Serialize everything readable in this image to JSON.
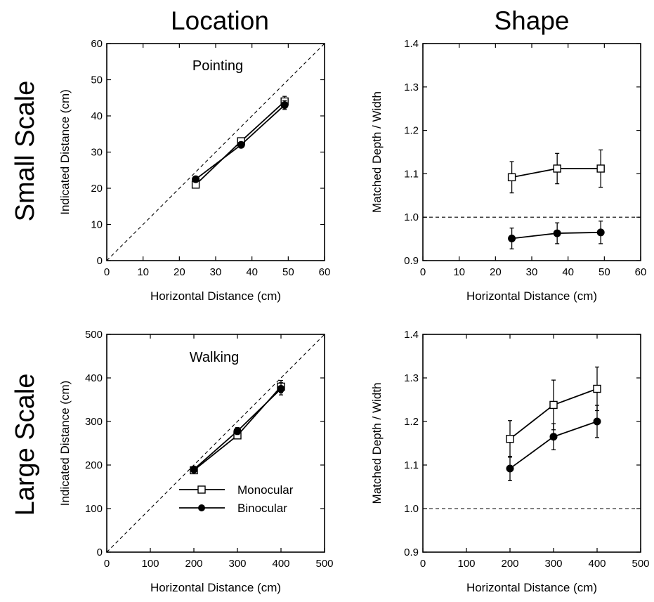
{
  "figure": {
    "column_titles": [
      "Location",
      "Shape"
    ],
    "row_titles": [
      "Small Scale",
      "Large Scale"
    ]
  },
  "legend": {
    "entries": [
      {
        "label": "Monocular",
        "marker": "open-square"
      },
      {
        "label": "Binocular",
        "marker": "filled-circle"
      }
    ],
    "placement": "lower-right of bottom-left panel"
  },
  "chart_data": [
    {
      "type": "line",
      "annotation": "Pointing",
      "xlabel": "Horizontal  Distance (cm)",
      "ylabel": "Indicated Distance (cm)",
      "xlim": [
        0,
        60
      ],
      "ylim": [
        0,
        60
      ],
      "xticks": [
        "0",
        "10",
        "20",
        "30",
        "40",
        "50",
        "60"
      ],
      "yticks": [
        "0",
        "10",
        "20",
        "30",
        "40",
        "50",
        "60"
      ],
      "reference_line": {
        "style": "dashed",
        "points": [
          [
            0,
            0
          ],
          [
            60,
            60
          ]
        ]
      },
      "series": [
        {
          "name": "Monocular",
          "marker": "open-square",
          "x": [
            24.5,
            37,
            49
          ],
          "y": [
            21,
            33,
            44
          ],
          "err": [
            0.6,
            0.6,
            1.4
          ]
        },
        {
          "name": "Binocular",
          "marker": "filled-circle",
          "x": [
            24.5,
            37,
            49
          ],
          "y": [
            22.5,
            32,
            43
          ],
          "err": [
            0.6,
            0.6,
            1.2
          ]
        }
      ]
    },
    {
      "type": "line",
      "annotation": "",
      "xlabel": "Horizontal Distance  (cm)",
      "ylabel": "Matched Depth / Width",
      "xlim": [
        0,
        60
      ],
      "ylim": [
        0.9,
        1.4
      ],
      "xticks": [
        "0",
        "10",
        "20",
        "30",
        "40",
        "50",
        "60"
      ],
      "yticks": [
        "0.9",
        "1.0",
        "1.1",
        "1.2",
        "1.3",
        "1.4"
      ],
      "reference_line": {
        "style": "dashed",
        "points": [
          [
            0,
            1.0
          ],
          [
            60,
            1.0
          ]
        ]
      },
      "series": [
        {
          "name": "Monocular",
          "marker": "open-square",
          "x": [
            24.5,
            37,
            49
          ],
          "y": [
            1.092,
            1.112,
            1.112
          ],
          "err": [
            0.036,
            0.035,
            0.043
          ]
        },
        {
          "name": "Binocular",
          "marker": "filled-circle",
          "x": [
            24.5,
            37,
            49
          ],
          "y": [
            0.951,
            0.963,
            0.965
          ],
          "err": [
            0.024,
            0.024,
            0.026
          ]
        }
      ]
    },
    {
      "type": "line",
      "annotation": "Walking",
      "xlabel": "Horizontal  Distance (cm)",
      "ylabel": "Indicated Distance (cm)",
      "xlim": [
        0,
        500
      ],
      "ylim": [
        0,
        500
      ],
      "xticks": [
        "0",
        "100",
        "200",
        "300",
        "400",
        "500"
      ],
      "yticks": [
        "0",
        "100",
        "200",
        "300",
        "400",
        "500"
      ],
      "reference_line": {
        "style": "dashed",
        "points": [
          [
            0,
            0
          ],
          [
            500,
            500
          ]
        ]
      },
      "series": [
        {
          "name": "Monocular",
          "marker": "open-square",
          "x": [
            200,
            300,
            400
          ],
          "y": [
            188,
            268,
            380
          ],
          "err": [
            5,
            6,
            14
          ]
        },
        {
          "name": "Binocular",
          "marker": "filled-circle",
          "x": [
            200,
            300,
            400
          ],
          "y": [
            190,
            278,
            375
          ],
          "err": [
            5,
            8,
            14
          ]
        }
      ]
    },
    {
      "type": "line",
      "annotation": "",
      "xlabel": "Horizontal Distance  (cm)",
      "ylabel": "Matched Depth / Width",
      "xlim": [
        0,
        500
      ],
      "ylim": [
        0.9,
        1.4
      ],
      "xticks": [
        "0",
        "100",
        "200",
        "300",
        "400",
        "500"
      ],
      "yticks": [
        "0.9",
        "1.0",
        "1.1",
        "1.2",
        "1.3",
        "1.4"
      ],
      "reference_line": {
        "style": "dashed",
        "points": [
          [
            0,
            1.0
          ],
          [
            500,
            1.0
          ]
        ]
      },
      "series": [
        {
          "name": "Monocular",
          "marker": "open-square",
          "x": [
            200,
            300,
            400
          ],
          "y": [
            1.16,
            1.238,
            1.275
          ],
          "err": [
            0.042,
            0.057,
            0.05
          ]
        },
        {
          "name": "Binocular",
          "marker": "filled-circle",
          "x": [
            200,
            300,
            400
          ],
          "y": [
            1.092,
            1.165,
            1.2
          ],
          "err": [
            0.028,
            0.03,
            0.037
          ]
        }
      ]
    }
  ]
}
